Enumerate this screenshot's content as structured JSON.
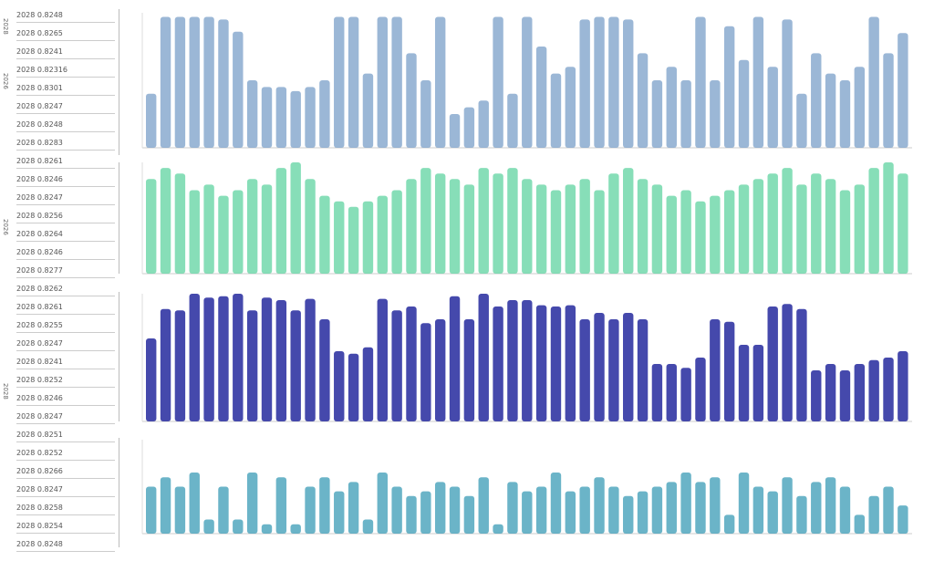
{
  "sidebar": {
    "group_labels": [
      "2028",
      "2026",
      "2026",
      "2028"
    ],
    "rows": [
      "2028 0.8248",
      "2028 0.8265",
      "2028 0.8241",
      "2028 0.82316",
      "2028 0.8301",
      "2028 0.8247",
      "2028 0.8248",
      "2028 0.8283",
      "2028 0.8261",
      "2028 0.8246",
      "2028 0.8247",
      "2028 0.8256",
      "2028 0.8264",
      "2028 0.8246",
      "2028 0.8277",
      "2028 0.8262",
      "2028 0.8261",
      "2028 0.8255",
      "2028 0.8247",
      "2028 0.8241",
      "2028 0.8252",
      "2028 0.8246",
      "2028 0.8247",
      "2028 0.8251",
      "2028 0.8252",
      "2028 0.8266",
      "2028 0.8247",
      "2028 0.8258",
      "2028 0.8254",
      "2028 0.8248"
    ]
  },
  "chart_data": [
    {
      "type": "bar",
      "color": "#7a9fc8",
      "ylim": [
        0,
        100
      ],
      "values": [
        40,
        97,
        97,
        97,
        97,
        95,
        86,
        50,
        45,
        45,
        42,
        45,
        50,
        97,
        97,
        55,
        97,
        97,
        70,
        50,
        97,
        25,
        30,
        35,
        97,
        40,
        97,
        75,
        55,
        60,
        95,
        97,
        97,
        95,
        70,
        50,
        60,
        50,
        97,
        50,
        90,
        65,
        97,
        60,
        95,
        40,
        70,
        55,
        50,
        60,
        97,
        70,
        85
      ]
    },
    {
      "type": "bar",
      "color": "#5fd3a0",
      "ylim": [
        0,
        100
      ],
      "values": [
        85,
        95,
        90,
        75,
        80,
        70,
        75,
        85,
        80,
        95,
        100,
        85,
        70,
        65,
        60,
        65,
        70,
        75,
        85,
        95,
        90,
        85,
        80,
        95,
        90,
        95,
        85,
        80,
        75,
        80,
        85,
        75,
        90,
        95,
        85,
        80,
        70,
        75,
        65,
        70,
        75,
        80,
        85,
        90,
        95,
        80,
        90,
        85,
        75,
        80,
        95,
        100,
        90
      ]
    },
    {
      "type": "bar",
      "color": "#3b3fa8",
      "ylim": [
        0,
        100
      ],
      "values": [
        65,
        88,
        87,
        100,
        97,
        98,
        100,
        87,
        97,
        95,
        87,
        96,
        80,
        55,
        53,
        58,
        96,
        87,
        90,
        77,
        80,
        98,
        80,
        100,
        90,
        95,
        95,
        91,
        90,
        91,
        80,
        85,
        80,
        85,
        80,
        45,
        45,
        42,
        50,
        80,
        78,
        60,
        60,
        90,
        92,
        88,
        40,
        45,
        40,
        45,
        48,
        50,
        55
      ]
    },
    {
      "type": "bar",
      "color": "#3a9bb5",
      "ylim": [
        0,
        100
      ],
      "values": [
        50,
        60,
        50,
        65,
        15,
        50,
        15,
        65,
        10,
        60,
        10,
        50,
        60,
        45,
        55,
        15,
        65,
        50,
        40,
        45,
        55,
        50,
        40,
        60,
        10,
        55,
        45,
        50,
        65,
        45,
        50,
        60,
        50,
        40,
        45,
        50,
        55,
        65,
        55,
        60,
        20,
        65,
        50,
        45,
        60,
        40,
        55,
        60,
        50,
        20,
        40,
        50,
        30
      ]
    }
  ]
}
